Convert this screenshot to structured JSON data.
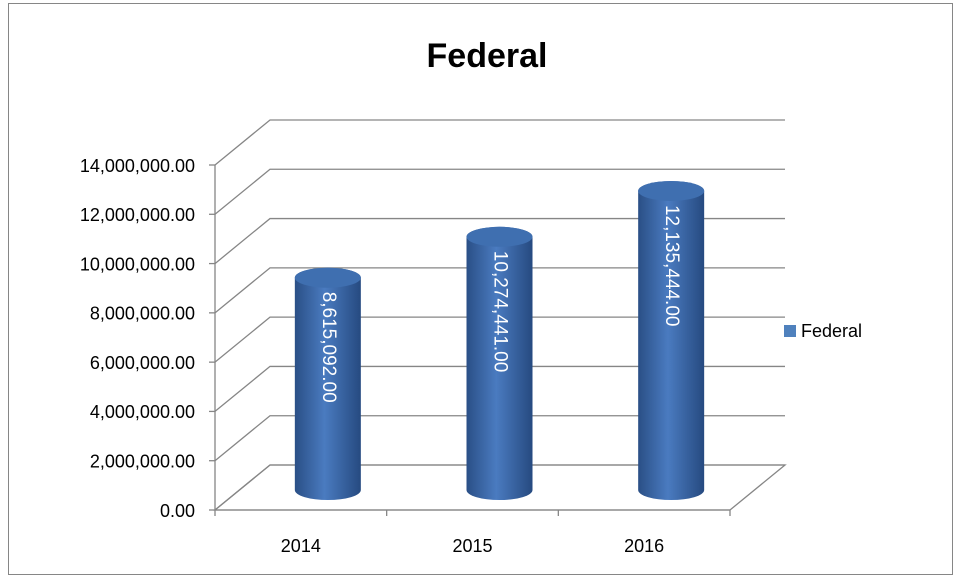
{
  "chart_data": {
    "type": "bar",
    "title": "Federal",
    "categories": [
      "2014",
      "2015",
      "2016"
    ],
    "series": [
      {
        "name": "Federal",
        "color": "#4f81bd",
        "values": [
          8615092,
          10274441,
          12135444
        ],
        "value_labels": [
          "8,615,092.00",
          "10,274,441.00",
          "12,135,444.00"
        ]
      }
    ],
    "ylim": [
      0,
      14000000
    ],
    "yticks": [
      {
        "value": 0,
        "label": "0.00"
      },
      {
        "value": 2000000,
        "label": "2,000,000.00"
      },
      {
        "value": 4000000,
        "label": "4,000,000.00"
      },
      {
        "value": 6000000,
        "label": "6,000,000.00"
      },
      {
        "value": 8000000,
        "label": "8,000,000.00"
      },
      {
        "value": 10000000,
        "label": "10,000,000.00"
      },
      {
        "value": 12000000,
        "label": "12,000,000.00"
      },
      {
        "value": 14000000,
        "label": "14,000,000.00"
      }
    ],
    "grid": true,
    "legend": "right"
  }
}
